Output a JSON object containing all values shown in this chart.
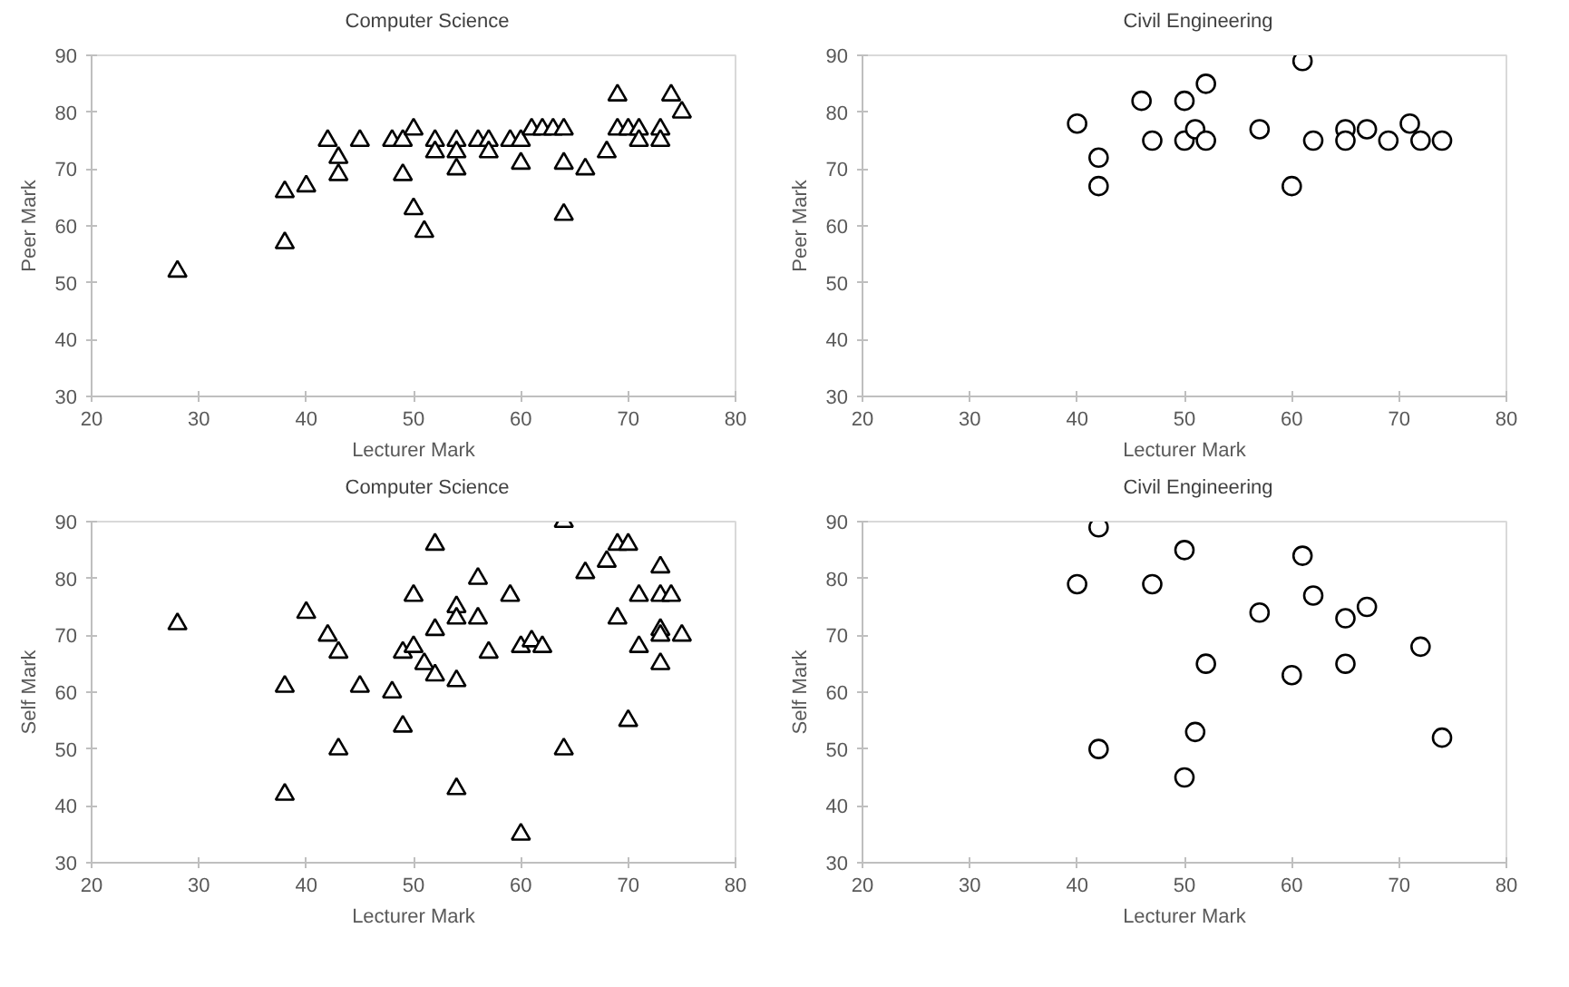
{
  "chart_data": [
    {
      "type": "scatter",
      "xlabel": "Lecturer Mark",
      "ylabel": "Peer Mark",
      "xlim": [
        20,
        80
      ],
      "ylim": [
        30,
        90
      ],
      "xticks": [
        20,
        30,
        40,
        50,
        60,
        70,
        80
      ],
      "yticks": [
        30,
        40,
        50,
        60,
        70,
        80,
        90
      ],
      "marker": "triangle",
      "legend": "top",
      "series": [
        {
          "name": "Computer Science",
          "color": "#000000",
          "x": [
            28,
            38,
            38,
            40,
            42,
            43,
            43,
            45,
            48,
            49,
            49,
            50,
            50,
            51,
            52,
            52,
            54,
            54,
            54,
            56,
            57,
            57,
            59,
            60,
            60,
            61,
            62,
            63,
            64,
            64,
            64,
            66,
            68,
            69,
            69,
            70,
            71,
            71,
            73,
            73,
            74,
            75
          ],
          "values": [
            52,
            66,
            57,
            67,
            75,
            72,
            69,
            75,
            75,
            75,
            69,
            77,
            63,
            59,
            75,
            73,
            75,
            73,
            70,
            75,
            75,
            73,
            75,
            75,
            71,
            77,
            77,
            77,
            77,
            71,
            62,
            70,
            73,
            83,
            77,
            77,
            77,
            75,
            77,
            75,
            83,
            80
          ]
        }
      ]
    },
    {
      "type": "scatter",
      "xlabel": "Lecturer Mark",
      "ylabel": "Peer Mark",
      "xlim": [
        20,
        80
      ],
      "ylim": [
        30,
        90
      ],
      "xticks": [
        20,
        30,
        40,
        50,
        60,
        70,
        80
      ],
      "yticks": [
        30,
        40,
        50,
        60,
        70,
        80,
        90
      ],
      "marker": "circle",
      "legend": "top",
      "series": [
        {
          "name": "Civil Engineering",
          "color": "#000000",
          "x": [
            40,
            42,
            42,
            46,
            47,
            50,
            50,
            51,
            52,
            52,
            57,
            60,
            61,
            62,
            65,
            65,
            67,
            69,
            71,
            72,
            74
          ],
          "values": [
            78,
            72,
            67,
            82,
            75,
            82,
            75,
            77,
            85,
            75,
            77,
            67,
            89,
            75,
            77,
            75,
            77,
            75,
            78,
            75,
            75
          ]
        }
      ]
    },
    {
      "type": "scatter",
      "xlabel": "Lecturer Mark",
      "ylabel": "Self Mark",
      "xlim": [
        20,
        80
      ],
      "ylim": [
        30,
        90
      ],
      "xticks": [
        20,
        30,
        40,
        50,
        60,
        70,
        80
      ],
      "yticks": [
        30,
        40,
        50,
        60,
        70,
        80,
        90
      ],
      "marker": "triangle",
      "legend": "top",
      "series": [
        {
          "name": "Computer Science",
          "color": "#000000",
          "x": [
            28,
            38,
            38,
            40,
            42,
            43,
            43,
            45,
            48,
            49,
            49,
            50,
            50,
            51,
            52,
            52,
            52,
            54,
            54,
            54,
            54,
            56,
            56,
            57,
            59,
            60,
            60,
            61,
            62,
            64,
            64,
            66,
            68,
            69,
            69,
            70,
            70,
            71,
            71,
            73,
            73,
            73,
            73,
            73,
            74,
            75
          ],
          "values": [
            72,
            61,
            42,
            74,
            70,
            67,
            50,
            61,
            60,
            67,
            54,
            77,
            68,
            65,
            86,
            71,
            63,
            75,
            73,
            62,
            43,
            80,
            73,
            67,
            77,
            68,
            35,
            69,
            68,
            90,
            50,
            81,
            83,
            86,
            73,
            86,
            55,
            77,
            68,
            82,
            77,
            71,
            70,
            65,
            77,
            70
          ]
        }
      ]
    },
    {
      "type": "scatter",
      "xlabel": "Lecturer Mark",
      "ylabel": "Self Mark",
      "xlim": [
        20,
        80
      ],
      "ylim": [
        30,
        90
      ],
      "xticks": [
        20,
        30,
        40,
        50,
        60,
        70,
        80
      ],
      "yticks": [
        30,
        40,
        50,
        60,
        70,
        80,
        90
      ],
      "marker": "circle",
      "legend": "top",
      "series": [
        {
          "name": "Civil Engineering",
          "color": "#000000",
          "x": [
            40,
            42,
            42,
            47,
            50,
            50,
            51,
            52,
            57,
            60,
            61,
            62,
            65,
            65,
            67,
            72,
            74
          ],
          "values": [
            79,
            89,
            50,
            79,
            85,
            45,
            53,
            65,
            74,
            63,
            84,
            77,
            73,
            65,
            75,
            68,
            52
          ]
        }
      ]
    }
  ]
}
